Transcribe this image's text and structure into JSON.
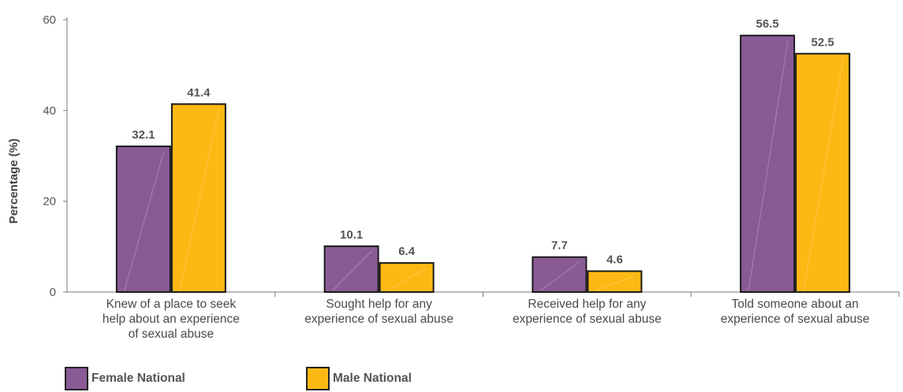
{
  "chart_data": {
    "type": "bar",
    "ylabel": "Percentage (%)",
    "ylim": [
      0,
      60
    ],
    "yticks": [
      0,
      20,
      40,
      60
    ],
    "categories": [
      [
        "Knew of a place to seek",
        "help about an experience",
        "of sexual abuse"
      ],
      [
        "Sought help for any",
        "experience of sexual abuse"
      ],
      [
        "Received help for any",
        "experience of sexual abuse"
      ],
      [
        "Told someone about an",
        "experience of sexual abuse"
      ]
    ],
    "series": [
      {
        "name": "Female National",
        "color": "#8a5a97",
        "values": [
          32.1,
          10.1,
          7.7,
          56.5
        ]
      },
      {
        "name": "Male National",
        "color": "#fdb913",
        "values": [
          41.4,
          6.4,
          4.6,
          52.5
        ]
      }
    ],
    "data_labels": [
      [
        "32.1",
        "10.1",
        "7.7",
        "56.5"
      ],
      [
        "41.4",
        "6.4",
        "4.6",
        "52.5"
      ]
    ],
    "grid": false,
    "legend_position": "bottom-left"
  }
}
